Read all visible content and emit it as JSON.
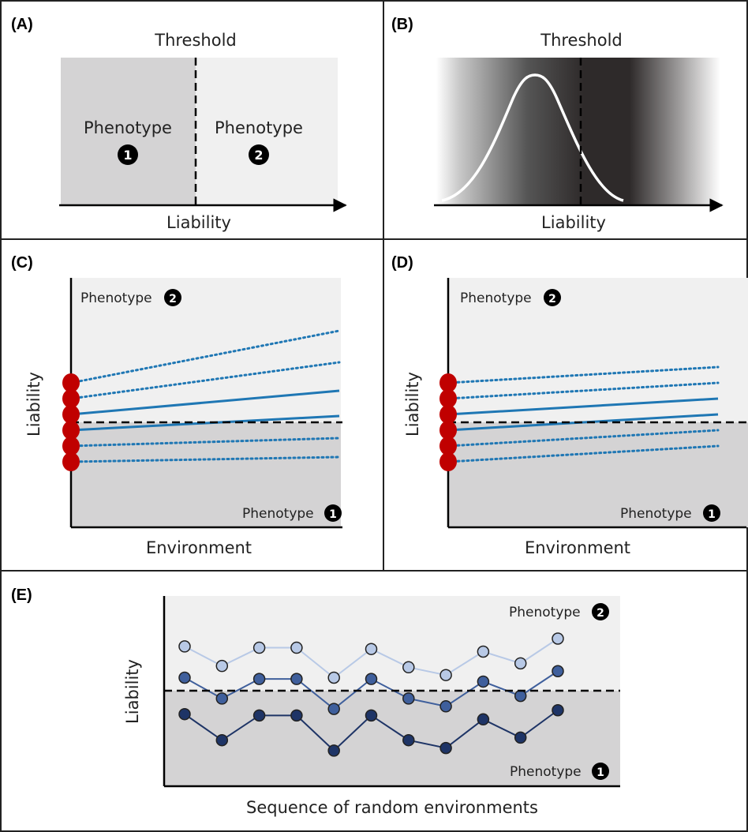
{
  "panels": {
    "a": {
      "label": "(A)",
      "title": "Threshold",
      "xlabel": "Liability",
      "left_text": "Phenotype",
      "left_badge": "1",
      "right_text": "Phenotype",
      "right_badge": "2"
    },
    "b": {
      "label": "(B)",
      "title": "Threshold",
      "xlabel": "Liability"
    },
    "c": {
      "label": "(C)",
      "ylabel": "Liability",
      "xlabel": "Environment",
      "top_text": "Phenotype",
      "top_badge": "2",
      "bottom_text": "Phenotype",
      "bottom_badge": "1"
    },
    "d": {
      "label": "(D)",
      "ylabel": "Liability",
      "xlabel": "Environment",
      "top_text": "Phenotype",
      "top_badge": "2",
      "bottom_text": "Phenotype",
      "bottom_badge": "1"
    },
    "e": {
      "label": "(E)",
      "ylabel": "Liability",
      "xlabel": "Sequence of random environments",
      "top_text": "Phenotype",
      "top_badge": "2",
      "bottom_text": "Phenotype",
      "bottom_badge": "1"
    }
  },
  "colors": {
    "border": "#222222",
    "dark_region": "#d4d3d4",
    "light_region": "#f0f0f0",
    "blue_line": "#1f77b4",
    "red_dot": "#c00000",
    "series_light": "#b8c9e6",
    "series_mid": "#3f5f9c",
    "series_dark": "#1e3466"
  },
  "chart_data": [
    {
      "panel": "C",
      "type": "line",
      "threshold": 0,
      "ylabel": "Liability",
      "xlabel": "Environment",
      "x": [
        0,
        1
      ],
      "series": [
        {
          "style": "dotted",
          "values": [
            2.5,
            5.8
          ]
        },
        {
          "style": "dotted",
          "values": [
            1.5,
            3.8
          ]
        },
        {
          "style": "solid",
          "values": [
            0.5,
            2.0
          ]
        },
        {
          "style": "solid",
          "values": [
            -0.5,
            0.4
          ]
        },
        {
          "style": "dotted",
          "values": [
            -1.5,
            -1.0
          ]
        },
        {
          "style": "dotted",
          "values": [
            -2.5,
            -2.2
          ]
        }
      ]
    },
    {
      "panel": "D",
      "type": "line",
      "threshold": 0,
      "ylabel": "Liability",
      "xlabel": "Environment",
      "x": [
        0,
        1
      ],
      "series": [
        {
          "style": "dotted",
          "values": [
            2.5,
            3.5
          ]
        },
        {
          "style": "dotted",
          "values": [
            1.5,
            2.5
          ]
        },
        {
          "style": "solid",
          "values": [
            0.5,
            1.5
          ]
        },
        {
          "style": "solid",
          "values": [
            -0.5,
            0.5
          ]
        },
        {
          "style": "dotted",
          "values": [
            -1.5,
            -0.5
          ]
        },
        {
          "style": "dotted",
          "values": [
            -2.5,
            -1.5
          ]
        }
      ]
    },
    {
      "panel": "E",
      "type": "line",
      "threshold": 0,
      "ylabel": "Liability",
      "xlabel": "Sequence of random environments",
      "x": [
        1,
        2,
        3,
        4,
        5,
        6,
        7,
        8,
        9,
        10,
        11
      ],
      "series": [
        {
          "color_key": "series_light",
          "values": [
            3.4,
            1.9,
            3.3,
            3.3,
            1.0,
            3.2,
            1.8,
            1.2,
            3.0,
            2.1,
            4.0
          ]
        },
        {
          "color_key": "series_mid",
          "values": [
            1.0,
            -0.6,
            0.9,
            0.9,
            -1.4,
            0.9,
            -0.6,
            -1.2,
            0.7,
            -0.4,
            1.5
          ]
        },
        {
          "color_key": "series_dark",
          "values": [
            -1.8,
            -3.8,
            -1.9,
            -1.9,
            -4.6,
            -1.9,
            -3.8,
            -4.4,
            -2.2,
            -3.6,
            -1.5
          ]
        }
      ]
    }
  ]
}
